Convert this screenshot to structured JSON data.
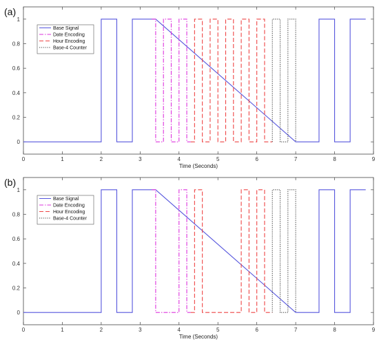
{
  "chart_data": [
    {
      "panel_label": "(a)",
      "type": "line",
      "xlabel": "Time (Seconds)",
      "ylabel": "",
      "xlim": [
        0,
        9
      ],
      "ylim": [
        -0.1,
        1.1
      ],
      "xticks": [
        "0",
        "1",
        "2",
        "3",
        "4",
        "5",
        "6",
        "7",
        "8",
        "9"
      ],
      "yticks": [
        "0",
        "0.2",
        "0.4",
        "0.6",
        "0.8",
        "1"
      ],
      "grid": false,
      "legend_position": "top-left",
      "series": [
        {
          "name": "Base Signal",
          "color": "#5555dd",
          "style": "solid",
          "points": [
            [
              0,
              0
            ],
            [
              2,
              0
            ],
            [
              2,
              1
            ],
            [
              2.4,
              1
            ],
            [
              2.4,
              0
            ],
            [
              2.8,
              0
            ],
            [
              2.8,
              1
            ],
            [
              3.4,
              1
            ],
            [
              7.0,
              0
            ],
            [
              7.6,
              0
            ],
            [
              7.6,
              1
            ],
            [
              8.0,
              1
            ],
            [
              8.0,
              0
            ],
            [
              8.4,
              0
            ],
            [
              8.4,
              1
            ],
            [
              8.8,
              1
            ]
          ]
        },
        {
          "name": "Date Encoding",
          "color": "#dd33dd",
          "style": "dashdot",
          "points": [
            [
              3.3,
              1
            ],
            [
              3.4,
              1
            ],
            [
              3.4,
              0
            ],
            [
              3.6,
              0
            ],
            [
              3.6,
              1
            ],
            [
              3.8,
              1
            ],
            [
              3.8,
              0
            ],
            [
              4.0,
              0
            ],
            [
              4.0,
              1
            ],
            [
              4.2,
              1
            ],
            [
              4.2,
              0
            ],
            [
              4.3,
              0
            ]
          ]
        },
        {
          "name": "Hour Encoding",
          "color": "#ee4444",
          "style": "dashed",
          "points": [
            [
              4.3,
              0
            ],
            [
              4.4,
              0
            ],
            [
              4.4,
              1
            ],
            [
              4.6,
              1
            ],
            [
              4.6,
              0
            ],
            [
              4.8,
              0
            ],
            [
              4.8,
              1
            ],
            [
              5.0,
              1
            ],
            [
              5.0,
              0
            ],
            [
              5.2,
              0
            ],
            [
              5.2,
              1
            ],
            [
              5.4,
              1
            ],
            [
              5.4,
              0
            ],
            [
              5.6,
              0
            ],
            [
              5.6,
              1
            ],
            [
              5.8,
              1
            ],
            [
              5.8,
              0
            ],
            [
              6.0,
              0
            ],
            [
              6.0,
              1
            ],
            [
              6.2,
              1
            ],
            [
              6.2,
              0
            ],
            [
              6.4,
              0
            ]
          ]
        },
        {
          "name": "Base-4 Counter",
          "color": "#444444",
          "style": "dotted",
          "points": [
            [
              6.4,
              0
            ],
            [
              6.4,
              1
            ],
            [
              6.6,
              1
            ],
            [
              6.6,
              0
            ],
            [
              6.8,
              0
            ],
            [
              6.8,
              1
            ],
            [
              7.0,
              1
            ],
            [
              7.0,
              0
            ]
          ]
        }
      ]
    },
    {
      "panel_label": "(b)",
      "type": "line",
      "xlabel": "Time (Seconds)",
      "ylabel": "",
      "xlim": [
        0,
        9
      ],
      "ylim": [
        -0.1,
        1.1
      ],
      "xticks": [
        "0",
        "1",
        "2",
        "3",
        "4",
        "5",
        "6",
        "7",
        "8",
        "9"
      ],
      "yticks": [
        "0",
        "0.2",
        "0.4",
        "0.6",
        "0.8",
        "1"
      ],
      "grid": false,
      "legend_position": "top-left",
      "series": [
        {
          "name": "Base Signal",
          "color": "#5555dd",
          "style": "solid",
          "points": [
            [
              0,
              0
            ],
            [
              2,
              0
            ],
            [
              2,
              1
            ],
            [
              2.4,
              1
            ],
            [
              2.4,
              0
            ],
            [
              2.8,
              0
            ],
            [
              2.8,
              1
            ],
            [
              3.4,
              1
            ],
            [
              7.0,
              0
            ],
            [
              7.6,
              0
            ],
            [
              7.6,
              1
            ],
            [
              8.0,
              1
            ],
            [
              8.0,
              0
            ],
            [
              8.4,
              0
            ],
            [
              8.4,
              1
            ],
            [
              8.8,
              1
            ]
          ]
        },
        {
          "name": "Date Encoding",
          "color": "#dd33dd",
          "style": "dashdot",
          "points": [
            [
              3.3,
              1
            ],
            [
              3.4,
              1
            ],
            [
              3.4,
              0
            ],
            [
              4.0,
              0
            ],
            [
              4.0,
              1
            ],
            [
              4.2,
              1
            ],
            [
              4.2,
              0
            ],
            [
              4.3,
              0
            ]
          ]
        },
        {
          "name": "Hour Encoding",
          "color": "#ee4444",
          "style": "dashed",
          "points": [
            [
              4.3,
              0
            ],
            [
              4.4,
              0
            ],
            [
              4.4,
              1
            ],
            [
              4.6,
              1
            ],
            [
              4.6,
              0
            ],
            [
              5.6,
              0
            ],
            [
              5.6,
              1
            ],
            [
              5.8,
              1
            ],
            [
              5.8,
              0
            ],
            [
              6.0,
              0
            ],
            [
              6.0,
              1
            ],
            [
              6.2,
              1
            ],
            [
              6.2,
              0
            ],
            [
              6.4,
              0
            ]
          ]
        },
        {
          "name": "Base-4 Counter",
          "color": "#444444",
          "style": "dotted",
          "points": [
            [
              6.4,
              0
            ],
            [
              6.4,
              1
            ],
            [
              6.6,
              1
            ],
            [
              6.6,
              0
            ],
            [
              6.8,
              0
            ],
            [
              6.8,
              1
            ],
            [
              7.0,
              1
            ],
            [
              7.0,
              0
            ]
          ]
        }
      ]
    }
  ]
}
